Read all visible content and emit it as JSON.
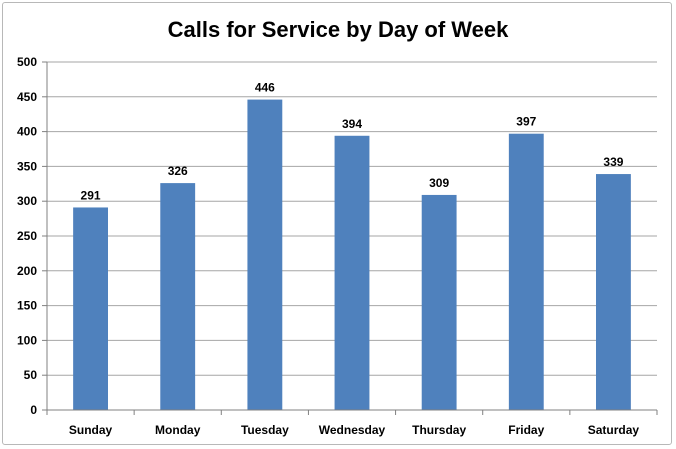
{
  "chart_data": {
    "type": "bar",
    "title": "Calls for Service by Day of Week",
    "xlabel": "",
    "ylabel": "",
    "categories": [
      "Sunday",
      "Monday",
      "Tuesday",
      "Wednesday",
      "Thursday",
      "Friday",
      "Saturday"
    ],
    "values": [
      291,
      326,
      446,
      394,
      309,
      397,
      339
    ],
    "ylim": [
      0,
      500
    ],
    "yticks": [
      0,
      50,
      100,
      150,
      200,
      250,
      300,
      350,
      400,
      450,
      500
    ],
    "grid": true,
    "legend": "none",
    "data_labels": true,
    "bar_color": "#4f81bd"
  }
}
